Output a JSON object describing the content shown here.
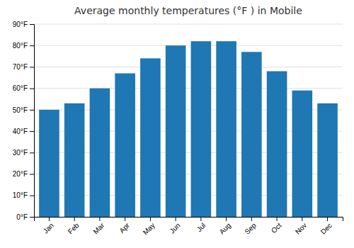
{
  "chart_data": {
    "type": "bar",
    "title": "Average monthly temperatures (°F ) in Mobile",
    "categories": [
      "Jan",
      "Feb",
      "Mar",
      "Apr",
      "May",
      "Jun",
      "Jul",
      "Aug",
      "Sep",
      "Oct",
      "Nov",
      "Dec"
    ],
    "values": [
      50,
      53,
      60,
      67,
      74,
      80,
      82,
      82,
      77,
      68,
      59,
      53
    ],
    "ylim": [
      0,
      90
    ],
    "yticks": [
      {
        "value": 0,
        "label": "0°F"
      },
      {
        "value": 10,
        "label": "10°F"
      },
      {
        "value": 20,
        "label": "20°F"
      },
      {
        "value": 30,
        "label": "30°F"
      },
      {
        "value": 40,
        "label": "40°F"
      },
      {
        "value": 50,
        "label": "50°F"
      },
      {
        "value": 60,
        "label": "60°F"
      },
      {
        "value": 70,
        "label": "70°F"
      },
      {
        "value": 80,
        "label": "80°F"
      },
      {
        "value": 90,
        "label": "90°F"
      }
    ],
    "grid": true
  }
}
